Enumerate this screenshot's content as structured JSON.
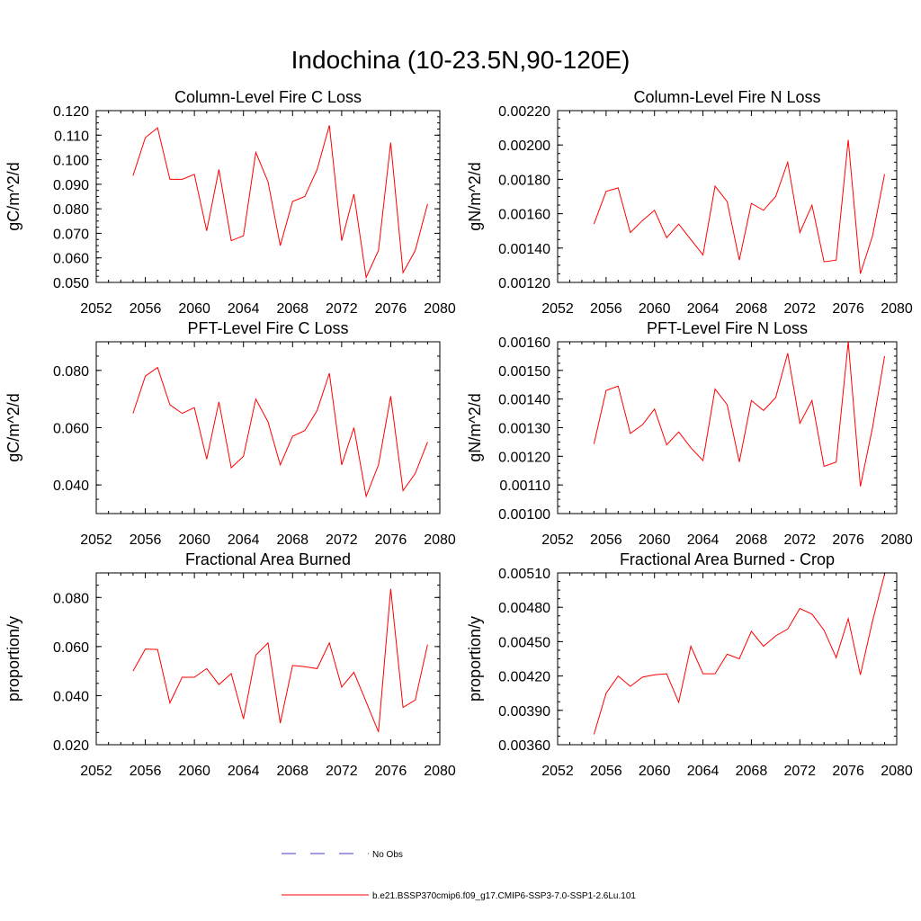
{
  "title": "Indochina (10-23.5N,90-120E)",
  "legend": {
    "obs_label": "No Obs",
    "model_label": "b.e21.BSSP370cmip6.f09_g17.CMIP6-SSP3-7.0-SSP1-2.6Lu.101",
    "obs_color": "#3b3bcc",
    "model_color": "#ff0000"
  },
  "chart_data": [
    {
      "type": "line",
      "title": "Column-Level Fire C Loss",
      "ylabel": "gC/m^2/d",
      "xlim": [
        2052,
        2080
      ],
      "x_ticks": [
        "2052",
        "2056",
        "2060",
        "2064",
        "2068",
        "2072",
        "2076",
        "2080"
      ],
      "ylim": [
        0.05,
        0.12
      ],
      "y_ticks": [
        "0.050",
        "0.060",
        "0.070",
        "0.080",
        "0.090",
        "0.100",
        "0.110",
        "0.120"
      ],
      "x": [
        2055,
        2056,
        2057,
        2058,
        2059,
        2060,
        2061,
        2062,
        2063,
        2064,
        2065,
        2066,
        2067,
        2068,
        2069,
        2070,
        2071,
        2072,
        2073,
        2074,
        2075,
        2076,
        2077,
        2078,
        2079
      ],
      "values": [
        0.0935,
        0.109,
        0.113,
        0.092,
        0.092,
        0.094,
        0.071,
        0.096,
        0.067,
        0.069,
        0.103,
        0.091,
        0.065,
        0.083,
        0.085,
        0.096,
        0.114,
        0.067,
        0.086,
        0.052,
        0.063,
        0.107,
        0.054,
        0.063,
        0.082
      ]
    },
    {
      "type": "line",
      "title": "Column-Level Fire N Loss",
      "ylabel": "gN/m^2/d",
      "xlim": [
        2052,
        2080
      ],
      "x_ticks": [
        "2052",
        "2056",
        "2060",
        "2064",
        "2068",
        "2072",
        "2076",
        "2080"
      ],
      "ylim": [
        0.0012,
        0.0022
      ],
      "y_ticks": [
        "0.00120",
        "0.00140",
        "0.00160",
        "0.00180",
        "0.00200",
        "0.00220"
      ],
      "x": [
        2055,
        2056,
        2057,
        2058,
        2059,
        2060,
        2061,
        2062,
        2063,
        2064,
        2065,
        2066,
        2067,
        2068,
        2069,
        2070,
        2071,
        2072,
        2073,
        2074,
        2075,
        2076,
        2077,
        2078,
        2079
      ],
      "values": [
        0.00154,
        0.00173,
        0.00175,
        0.00149,
        0.00156,
        0.00162,
        0.00146,
        0.00154,
        0.00145,
        0.00136,
        0.00176,
        0.00167,
        0.00133,
        0.00166,
        0.00162,
        0.0017,
        0.0019,
        0.00149,
        0.00165,
        0.00132,
        0.00133,
        0.00203,
        0.00125,
        0.00147,
        0.00183
      ]
    },
    {
      "type": "line",
      "title": "PFT-Level Fire C Loss",
      "ylabel": "gC/m^2/d",
      "xlim": [
        2052,
        2080
      ],
      "x_ticks": [
        "2052",
        "2056",
        "2060",
        "2064",
        "2068",
        "2072",
        "2076",
        "2080"
      ],
      "ylim": [
        0.03,
        0.09
      ],
      "y_ticks": [
        "0.040",
        "0.060",
        "0.080"
      ],
      "y_tick_values": [
        0.04,
        0.06,
        0.08
      ],
      "x": [
        2055,
        2056,
        2057,
        2058,
        2059,
        2060,
        2061,
        2062,
        2063,
        2064,
        2065,
        2066,
        2067,
        2068,
        2069,
        2070,
        2071,
        2072,
        2073,
        2074,
        2075,
        2076,
        2077,
        2078,
        2079
      ],
      "values": [
        0.065,
        0.078,
        0.081,
        0.068,
        0.065,
        0.067,
        0.049,
        0.069,
        0.046,
        0.05,
        0.07,
        0.062,
        0.047,
        0.057,
        0.059,
        0.066,
        0.079,
        0.047,
        0.06,
        0.036,
        0.047,
        0.071,
        0.038,
        0.044,
        0.055
      ]
    },
    {
      "type": "line",
      "title": "PFT-Level Fire N Loss",
      "ylabel": "gN/m^2/d",
      "xlim": [
        2052,
        2080
      ],
      "x_ticks": [
        "2052",
        "2056",
        "2060",
        "2064",
        "2068",
        "2072",
        "2076",
        "2080"
      ],
      "ylim": [
        0.001,
        0.0016
      ],
      "y_ticks": [
        "0.00100",
        "0.00110",
        "0.00120",
        "0.00130",
        "0.00140",
        "0.00150",
        "0.00160"
      ],
      "x": [
        2055,
        2056,
        2057,
        2058,
        2059,
        2060,
        2061,
        2062,
        2063,
        2064,
        2065,
        2066,
        2067,
        2068,
        2069,
        2070,
        2071,
        2072,
        2073,
        2074,
        2075,
        2076,
        2077,
        2078,
        2079
      ],
      "values": [
        0.001243,
        0.00143,
        0.001445,
        0.00128,
        0.00131,
        0.001365,
        0.00124,
        0.001285,
        0.00123,
        0.001185,
        0.001435,
        0.00138,
        0.00118,
        0.001395,
        0.00136,
        0.001405,
        0.00156,
        0.001315,
        0.001395,
        0.001165,
        0.00118,
        0.0016,
        0.001095,
        0.0013,
        0.00155
      ]
    },
    {
      "type": "line",
      "title": "Fractional Area Burned",
      "ylabel": "proportion/y",
      "xlim": [
        2052,
        2080
      ],
      "x_ticks": [
        "2052",
        "2056",
        "2060",
        "2064",
        "2068",
        "2072",
        "2076",
        "2080"
      ],
      "ylim": [
        0.02,
        0.09
      ],
      "y_ticks": [
        "0.020",
        "0.040",
        "0.060",
        "0.080"
      ],
      "y_tick_values": [
        0.02,
        0.04,
        0.06,
        0.08
      ],
      "x": [
        2055,
        2056,
        2057,
        2058,
        2059,
        2060,
        2061,
        2062,
        2063,
        2064,
        2065,
        2066,
        2067,
        2068,
        2069,
        2070,
        2071,
        2072,
        2073,
        2074,
        2075,
        2076,
        2077,
        2078,
        2079
      ],
      "values": [
        0.05,
        0.059,
        0.0588,
        0.037,
        0.0475,
        0.0475,
        0.051,
        0.0445,
        0.049,
        0.0305,
        0.0565,
        0.0615,
        0.0288,
        0.0523,
        0.0518,
        0.051,
        0.0615,
        0.0435,
        0.0495,
        0.0375,
        0.0252,
        0.0835,
        0.0352,
        0.0382,
        0.0608
      ]
    },
    {
      "type": "line",
      "title": "Fractional Area Burned - Crop",
      "ylabel": "proportion/y",
      "xlim": [
        2052,
        2080
      ],
      "x_ticks": [
        "2052",
        "2056",
        "2060",
        "2064",
        "2068",
        "2072",
        "2076",
        "2080"
      ],
      "ylim": [
        0.0036,
        0.0051
      ],
      "y_ticks": [
        "0.00360",
        "0.00390",
        "0.00420",
        "0.00450",
        "0.00480",
        "0.00510"
      ],
      "x": [
        2055,
        2056,
        2057,
        2058,
        2059,
        2060,
        2061,
        2062,
        2063,
        2064,
        2065,
        2066,
        2067,
        2068,
        2069,
        2070,
        2071,
        2072,
        2073,
        2074,
        2075,
        2076,
        2077,
        2078,
        2079
      ],
      "values": [
        0.00369,
        0.00405,
        0.0042,
        0.00411,
        0.00419,
        0.00421,
        0.00422,
        0.00397,
        0.00446,
        0.00422,
        0.00422,
        0.00439,
        0.00435,
        0.00459,
        0.00446,
        0.00455,
        0.00461,
        0.00479,
        0.00474,
        0.0046,
        0.00436,
        0.0047,
        0.00421,
        0.00468,
        0.00509
      ]
    }
  ]
}
